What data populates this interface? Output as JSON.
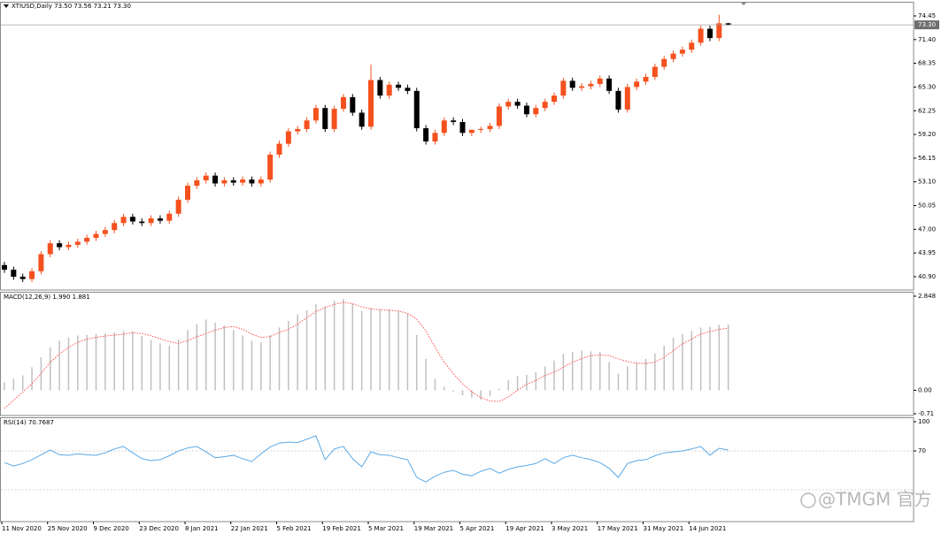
{
  "chart_data": [
    {
      "type": "candlestick",
      "title": "XTIUSD,Daily  73.50 73.56 73.21 73.30",
      "categories": [
        "11 Nov 2020",
        null,
        null,
        null,
        null,
        "25 Nov 2020",
        null,
        null,
        null,
        null,
        "9 Dec 2020",
        null,
        null,
        null,
        null,
        "23 Dec 2020",
        null,
        null,
        null,
        null,
        "8 Jan 2021",
        null,
        null,
        null,
        null,
        "22 Jan 2021",
        null,
        null,
        null,
        null,
        "5 Feb 2021",
        null,
        null,
        null,
        null,
        "19 Feb 2021",
        null,
        null,
        null,
        null,
        "5 Mar 2021",
        null,
        null,
        null,
        null,
        "19 Mar 2021",
        null,
        null,
        null,
        null,
        "5 Apr 2021",
        null,
        null,
        null,
        null,
        "19 Apr 2021",
        null,
        null,
        null,
        null,
        "3 May 2021",
        null,
        null,
        null,
        null,
        "17 May 2021",
        null,
        null,
        null,
        null,
        "31 May 2021",
        null,
        null,
        null,
        null,
        "14 Jun 2021",
        null,
        null,
        null,
        null
      ],
      "open": [
        42.4,
        41.8,
        40.9,
        40.6,
        41.6,
        43.8,
        45.2,
        44.7,
        45.0,
        45.4,
        45.9,
        46.4,
        46.9,
        47.8,
        48.6,
        48.0,
        47.8,
        48.4,
        48.1,
        49.0,
        50.8,
        52.6,
        53.3,
        53.9,
        52.9,
        53.3,
        53.0,
        53.4,
        52.9,
        53.4,
        56.6,
        58.0,
        59.6,
        59.9,
        61.0,
        62.6,
        59.9,
        62.5,
        64.0,
        62.0,
        60.2,
        66.2,
        64.2,
        65.6,
        65.2,
        64.8,
        60.0,
        58.3,
        59.4,
        61.0,
        60.8,
        59.4,
        59.8,
        59.9,
        60.3,
        62.8,
        63.4,
        62.9,
        61.8,
        62.6,
        63.4,
        64.2,
        66.1,
        65.2,
        65.4,
        65.7,
        66.4,
        64.8,
        62.4,
        65.3,
        66.0,
        66.6,
        67.9,
        68.9,
        69.6,
        70.1,
        71.0,
        72.8,
        71.6,
        73.5
      ],
      "high": [
        42.8,
        42.2,
        41.3,
        42.0,
        44.2,
        45.6,
        45.6,
        45.4,
        45.8,
        46.3,
        46.8,
        47.3,
        48.2,
        49.0,
        49.0,
        48.4,
        48.8,
        48.8,
        49.4,
        51.2,
        53.0,
        53.7,
        54.3,
        54.3,
        53.7,
        53.7,
        53.8,
        53.8,
        53.8,
        57.0,
        58.4,
        60.0,
        60.3,
        61.4,
        63.0,
        63.0,
        62.9,
        64.4,
        64.4,
        62.4,
        68.2,
        66.6,
        66.0,
        66.0,
        65.6,
        65.2,
        60.4,
        59.8,
        61.4,
        61.4,
        61.2,
        59.8,
        60.2,
        60.7,
        63.2,
        63.8,
        63.8,
        63.3,
        63.0,
        63.8,
        64.6,
        66.5,
        66.5,
        65.8,
        66.1,
        66.8,
        66.8,
        65.2,
        65.7,
        66.4,
        67.0,
        68.3,
        69.3,
        70.0,
        70.5,
        71.4,
        73.2,
        73.2,
        74.6,
        73.56
      ],
      "low": [
        41.4,
        40.5,
        40.2,
        40.2,
        41.2,
        43.4,
        44.3,
        44.3,
        44.6,
        45.0,
        45.5,
        46.0,
        46.5,
        47.4,
        47.6,
        47.4,
        47.4,
        47.7,
        47.7,
        48.6,
        50.4,
        52.2,
        52.9,
        52.5,
        52.5,
        52.6,
        52.6,
        52.5,
        52.5,
        53.0,
        56.2,
        57.6,
        59.2,
        59.5,
        60.6,
        59.5,
        59.5,
        62.1,
        61.6,
        59.8,
        59.8,
        63.8,
        63.8,
        64.8,
        64.4,
        59.6,
        57.9,
        57.9,
        59.0,
        60.4,
        59.0,
        59.0,
        59.4,
        59.5,
        59.9,
        62.4,
        62.5,
        61.4,
        61.4,
        62.2,
        63.0,
        63.8,
        64.8,
        64.8,
        65.0,
        65.3,
        64.4,
        62.0,
        62.0,
        64.9,
        65.6,
        66.2,
        67.5,
        68.5,
        69.2,
        69.7,
        70.6,
        71.2,
        71.2,
        73.21
      ],
      "close": [
        41.8,
        40.9,
        40.6,
        41.6,
        43.8,
        45.2,
        44.7,
        45.0,
        45.4,
        45.9,
        46.4,
        46.9,
        47.8,
        48.6,
        48.0,
        47.8,
        48.4,
        48.1,
        49.0,
        50.8,
        52.6,
        53.3,
        53.9,
        52.9,
        53.3,
        53.0,
        53.4,
        52.9,
        53.4,
        56.6,
        58.0,
        59.6,
        59.9,
        61.0,
        62.6,
        59.9,
        62.5,
        64.0,
        62.0,
        60.2,
        66.2,
        64.2,
        65.6,
        65.2,
        64.8,
        60.0,
        58.3,
        59.4,
        61.0,
        60.8,
        59.4,
        59.8,
        59.9,
        60.3,
        62.8,
        63.4,
        62.9,
        61.8,
        62.6,
        63.4,
        64.2,
        66.1,
        65.2,
        65.4,
        65.7,
        66.4,
        64.8,
        62.4,
        65.3,
        66.0,
        66.6,
        67.9,
        68.9,
        69.6,
        70.1,
        71.0,
        72.8,
        71.6,
        73.5,
        73.3
      ],
      "up_color": "#f4511e",
      "down_color": "#000000",
      "ylim": [
        39.19,
        76.27
      ],
      "yticks": [
        {
          "value": 74.45,
          "label": "74.45"
        },
        {
          "value": 71.4,
          "label": "71.40"
        },
        {
          "value": 68.35,
          "label": "68.35"
        },
        {
          "value": 65.3,
          "label": "65.30"
        },
        {
          "value": 62.25,
          "label": "62.25"
        },
        {
          "value": 59.2,
          "label": "59.20"
        },
        {
          "value": 56.15,
          "label": "56.15"
        },
        {
          "value": 53.1,
          "label": "53.10"
        },
        {
          "value": 50.05,
          "label": "50.05"
        },
        {
          "value": 47.0,
          "label": "47.00"
        },
        {
          "value": 43.95,
          "label": "43.95"
        },
        {
          "value": 40.9,
          "label": "40.90"
        }
      ],
      "last_price": {
        "value": 73.3,
        "label": "73.30"
      }
    },
    {
      "type": "macd",
      "title": "MACD(12,26,9) 1.990 1.881",
      "series": [
        {
          "type": "bar",
          "color": "#c0c0c0",
          "values": [
            0.24,
            0.35,
            0.45,
            0.7,
            1.0,
            1.3,
            1.5,
            1.6,
            1.66,
            1.68,
            1.7,
            1.72,
            1.75,
            1.8,
            1.78,
            1.65,
            1.52,
            1.42,
            1.35,
            1.55,
            1.82,
            2.0,
            2.14,
            2.05,
            1.96,
            1.82,
            1.66,
            1.5,
            1.45,
            1.67,
            1.9,
            2.1,
            2.3,
            2.42,
            2.6,
            2.55,
            2.72,
            2.77,
            2.62,
            2.4,
            2.5,
            2.45,
            2.46,
            2.4,
            2.33,
            1.67,
            0.95,
            0.35,
            0.1,
            -0.05,
            -0.15,
            -0.22,
            -0.28,
            -0.18,
            0.05,
            0.3,
            0.44,
            0.47,
            0.55,
            0.72,
            0.9,
            1.1,
            1.16,
            1.2,
            1.18,
            1.16,
            0.85,
            0.5,
            0.72,
            0.85,
            0.95,
            1.12,
            1.35,
            1.59,
            1.7,
            1.8,
            1.9,
            1.92,
            1.98,
            1.99
          ]
        },
        {
          "type": "line",
          "color": "#ff5050",
          "dashed": true,
          "values": [
            -0.55,
            -0.3,
            -0.05,
            0.2,
            0.5,
            0.85,
            1.1,
            1.3,
            1.45,
            1.55,
            1.6,
            1.64,
            1.67,
            1.7,
            1.74,
            1.72,
            1.65,
            1.56,
            1.47,
            1.42,
            1.5,
            1.62,
            1.72,
            1.82,
            1.9,
            1.93,
            1.85,
            1.7,
            1.6,
            1.62,
            1.75,
            1.85,
            2.0,
            2.2,
            2.38,
            2.5,
            2.6,
            2.66,
            2.62,
            2.52,
            2.46,
            2.44,
            2.42,
            2.4,
            2.33,
            2.15,
            1.8,
            1.3,
            0.85,
            0.5,
            0.2,
            -0.05,
            -0.22,
            -0.32,
            -0.34,
            -0.2,
            0.0,
            0.18,
            0.3,
            0.45,
            0.55,
            0.7,
            0.85,
            0.96,
            1.05,
            1.07,
            1.05,
            0.95,
            0.87,
            0.82,
            0.81,
            0.85,
            1.0,
            1.2,
            1.4,
            1.55,
            1.7,
            1.78,
            1.84,
            1.881
          ]
        }
      ],
      "ylim": [
        -0.764,
        2.982
      ],
      "yticks": [
        2.848,
        {
          "value": 0,
          "label": "0.00"
        },
        -0.71
      ]
    },
    {
      "type": "line",
      "title": "RSI(14) 70.7687",
      "color": "#5aa9e6",
      "values": [
        58,
        54.5,
        57,
        61,
        66,
        71,
        66,
        65.5,
        67,
        66,
        65.5,
        68,
        72,
        74.5,
        68,
        62,
        60,
        61,
        65,
        70,
        73,
        74.5,
        69,
        63,
        64,
        65.5,
        62,
        59,
        67,
        74,
        78,
        79,
        78.5,
        82,
        85.5,
        61,
        72,
        74.5,
        62,
        53.6,
        69,
        66,
        65.5,
        63,
        61,
        42.7,
        38,
        44,
        48,
        50,
        46,
        44.5,
        49,
        52,
        47,
        51,
        53.6,
        55,
        57,
        62,
        57,
        63,
        65.5,
        63,
        61,
        58,
        52,
        42.7,
        57,
        60,
        61,
        65,
        68,
        69,
        70,
        72,
        74.5,
        65.5,
        72.7,
        70.7687
      ],
      "ylim": [
        -2.73,
        104.55
      ],
      "yticks": [
        100,
        70
      ],
      "levels": [
        70,
        30
      ]
    }
  ],
  "watermark": "@TMGM 官方"
}
